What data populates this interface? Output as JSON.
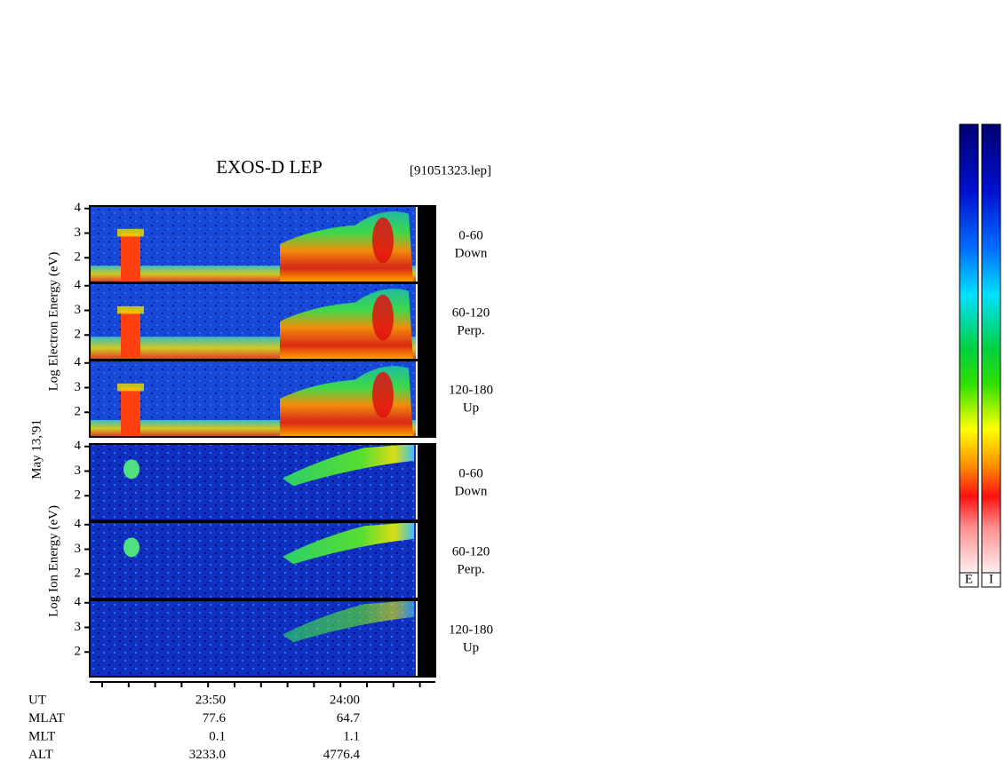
{
  "title": "EXOS-D LEP",
  "file": "[91051323.lep]",
  "date": "May 13,'91",
  "electron_axis_label": "Log Electron Energy (eV)",
  "ion_axis_label": "Log Ion Energy (eV)",
  "panels": [
    {
      "species": "electron",
      "angle": "0-60",
      "direction": "Down",
      "ylim": [
        1,
        4.1
      ],
      "yticks": [
        2,
        3,
        4
      ]
    },
    {
      "species": "electron",
      "angle": "60-120",
      "direction": "Perp.",
      "ylim": [
        1,
        4.1
      ],
      "yticks": [
        2,
        3,
        4
      ]
    },
    {
      "species": "electron",
      "angle": "120-180",
      "direction": "Up",
      "ylim": [
        1,
        4.1
      ],
      "yticks": [
        2,
        3,
        4
      ]
    },
    {
      "species": "ion",
      "angle": "0-60",
      "direction": "Down",
      "ylim": [
        1,
        4.1
      ],
      "yticks": [
        2,
        3,
        4
      ]
    },
    {
      "species": "ion",
      "angle": "60-120",
      "direction": "Perp.",
      "ylim": [
        1,
        4.1
      ],
      "yticks": [
        2,
        3,
        4
      ]
    },
    {
      "species": "ion",
      "angle": "120-180",
      "direction": "Up",
      "ylim": [
        1,
        4.1
      ],
      "yticks": [
        2,
        3,
        4
      ]
    }
  ],
  "footer": {
    "rows": [
      [
        "UT",
        "23:50",
        "24:00"
      ],
      [
        "MLAT",
        "77.6",
        "64.7"
      ],
      [
        "MLT",
        "0.1",
        "1.1"
      ],
      [
        "ALT",
        "3233.0",
        "4776.4"
      ]
    ]
  },
  "colorbar_labels": [
    "E",
    "I"
  ]
}
